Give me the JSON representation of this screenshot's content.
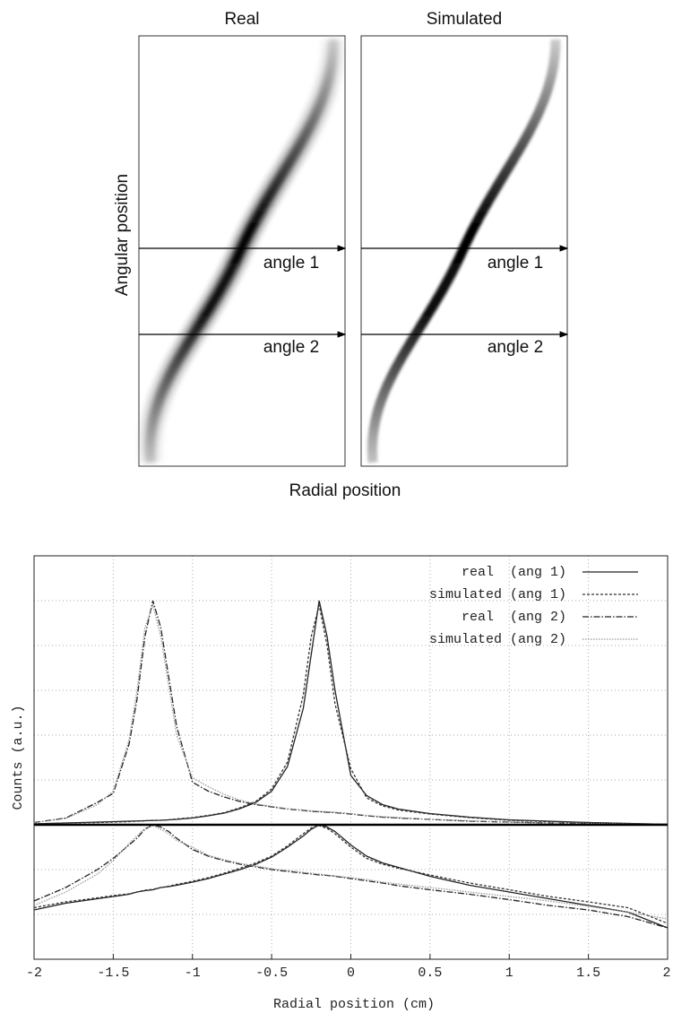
{
  "panels": {
    "titles": [
      "Real",
      "Simulated"
    ],
    "xlabel": "Radial position",
    "ylabel": "Angular position",
    "arrows": [
      "angle 1",
      "angle 2"
    ]
  },
  "chart_data": [
    {
      "type": "line",
      "x": [
        -2,
        -1.8,
        -1.6,
        -1.5,
        -1.4,
        -1.35,
        -1.3,
        -1.25,
        -1.2,
        -1.15,
        -1.1,
        -1.0,
        -0.9,
        -0.8,
        -0.7,
        -0.6,
        -0.5,
        -0.4,
        -0.3,
        -0.25,
        -0.2,
        -0.15,
        -0.1,
        0,
        0.1,
        0.2,
        0.3,
        0.5,
        0.75,
        1,
        1.25,
        1.5,
        1.75,
        2
      ],
      "xlim": [
        -2,
        2
      ],
      "xticks": [
        -2,
        -1.5,
        -1,
        -0.5,
        0,
        0.5,
        1,
        1.5,
        2
      ],
      "ylim": [
        0,
        6
      ],
      "yticks": [
        0,
        1,
        2,
        3,
        4,
        5,
        6
      ],
      "grid": true,
      "ylabel": "Counts (a.u.)",
      "legend": "upper right",
      "series": [
        {
          "name": "real  (ang 1)",
          "color": "#222222",
          "dash": "solid",
          "values": [
            0.02,
            0.04,
            0.06,
            0.07,
            0.08,
            0.085,
            0.09,
            0.095,
            0.1,
            0.11,
            0.12,
            0.15,
            0.2,
            0.26,
            0.36,
            0.5,
            0.75,
            1.3,
            2.6,
            3.8,
            5.0,
            4.2,
            3.0,
            1.1,
            0.65,
            0.45,
            0.35,
            0.25,
            0.17,
            0.11,
            0.08,
            0.05,
            0.03,
            0.01
          ]
        },
        {
          "name": "simulated (ang 1)",
          "color": "#333333",
          "dash": "dashed",
          "values": [
            0.02,
            0.04,
            0.05,
            0.06,
            0.07,
            0.08,
            0.09,
            0.1,
            0.1,
            0.11,
            0.13,
            0.16,
            0.21,
            0.27,
            0.38,
            0.52,
            0.8,
            1.4,
            2.9,
            4.2,
            4.9,
            4.0,
            2.7,
            1.25,
            0.6,
            0.42,
            0.33,
            0.24,
            0.16,
            0.1,
            0.07,
            0.05,
            0.03,
            0.01
          ]
        },
        {
          "name": "real  (ang 2)",
          "color": "#222222",
          "dash": "dashdot",
          "values": [
            0.05,
            0.15,
            0.5,
            0.7,
            1.8,
            2.8,
            4.2,
            5.0,
            4.4,
            3.3,
            2.2,
            0.95,
            0.75,
            0.62,
            0.52,
            0.45,
            0.4,
            0.35,
            0.32,
            0.3,
            0.29,
            0.28,
            0.27,
            0.24,
            0.2,
            0.17,
            0.15,
            0.12,
            0.08,
            0.06,
            0.04,
            0.03,
            0.02,
            0.01
          ]
        },
        {
          "name": "simulated (ang 2)",
          "color": "#999999",
          "dash": "dotted",
          "values": [
            0.05,
            0.14,
            0.45,
            0.75,
            1.9,
            3.0,
            4.4,
            4.9,
            4.2,
            3.1,
            2.0,
            1.05,
            0.85,
            0.68,
            0.55,
            0.47,
            0.41,
            0.36,
            0.33,
            0.31,
            0.3,
            0.29,
            0.28,
            0.25,
            0.21,
            0.18,
            0.16,
            0.12,
            0.09,
            0.06,
            0.04,
            0.03,
            0.02,
            0.01
          ]
        }
      ]
    },
    {
      "type": "line",
      "x": [
        -2,
        -1.8,
        -1.6,
        -1.5,
        -1.4,
        -1.35,
        -1.3,
        -1.25,
        -1.2,
        -1.15,
        -1.1,
        -1.0,
        -0.9,
        -0.8,
        -0.7,
        -0.6,
        -0.5,
        -0.4,
        -0.3,
        -0.25,
        -0.2,
        -0.15,
        -0.1,
        0,
        0.1,
        0.2,
        0.3,
        0.5,
        0.75,
        1,
        1.25,
        1.5,
        1.75,
        2
      ],
      "xlim": [
        -2,
        2
      ],
      "xticks": [
        -2,
        -1.5,
        -1,
        -0.5,
        0,
        0.5,
        1,
        1.5,
        2
      ],
      "ylim": [
        -3,
        0
      ],
      "yticks": [
        -3,
        -2,
        -1,
        0
      ],
      "grid": true,
      "xlabel": "Radial position (cm)",
      "series": [
        {
          "color": "#222222",
          "dash": "solid",
          "values": [
            -1.9,
            -1.75,
            -1.65,
            -1.6,
            -1.55,
            -1.5,
            -1.47,
            -1.45,
            -1.4,
            -1.38,
            -1.35,
            -1.28,
            -1.2,
            -1.1,
            -1.0,
            -0.88,
            -0.72,
            -0.5,
            -0.25,
            -0.1,
            0,
            -0.05,
            -0.15,
            -0.45,
            -0.7,
            -0.85,
            -0.95,
            -1.15,
            -1.35,
            -1.5,
            -1.65,
            -1.8,
            -1.95,
            -2.3
          ]
        },
        {
          "color": "#333333",
          "dash": "dashed",
          "values": [
            -1.85,
            -1.72,
            -1.63,
            -1.58,
            -1.54,
            -1.5,
            -1.46,
            -1.44,
            -1.4,
            -1.37,
            -1.33,
            -1.26,
            -1.18,
            -1.08,
            -0.97,
            -0.85,
            -0.7,
            -0.47,
            -0.2,
            -0.07,
            -0.02,
            -0.08,
            -0.2,
            -0.5,
            -0.75,
            -0.88,
            -0.97,
            -1.12,
            -1.3,
            -1.45,
            -1.6,
            -1.72,
            -1.85,
            -2.2
          ]
        },
        {
          "color": "#222222",
          "dash": "dashdot",
          "values": [
            -1.7,
            -1.4,
            -1.0,
            -0.75,
            -0.45,
            -0.3,
            -0.1,
            0,
            -0.05,
            -0.15,
            -0.3,
            -0.55,
            -0.7,
            -0.8,
            -0.88,
            -0.94,
            -1.0,
            -1.04,
            -1.08,
            -1.1,
            -1.12,
            -1.13,
            -1.15,
            -1.2,
            -1.25,
            -1.3,
            -1.36,
            -1.45,
            -1.55,
            -1.67,
            -1.8,
            -1.9,
            -2.05,
            -2.3
          ]
        },
        {
          "color": "#999999",
          "dash": "dotted",
          "values": [
            -1.8,
            -1.5,
            -1.1,
            -0.8,
            -0.42,
            -0.25,
            -0.08,
            -0.02,
            -0.1,
            -0.2,
            -0.35,
            -0.5,
            -0.68,
            -0.78,
            -0.86,
            -0.92,
            -0.98,
            -1.02,
            -1.06,
            -1.08,
            -1.1,
            -1.12,
            -1.14,
            -1.18,
            -1.22,
            -1.28,
            -1.32,
            -1.4,
            -1.5,
            -1.6,
            -1.7,
            -1.82,
            -1.95,
            -2.1
          ]
        }
      ]
    }
  ]
}
